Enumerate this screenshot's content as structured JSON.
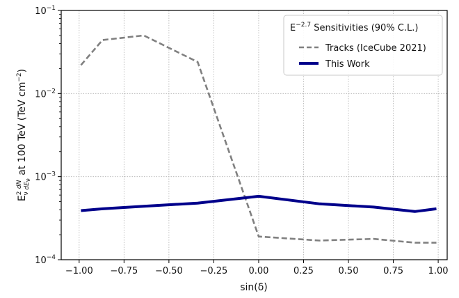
{
  "chart_data": {
    "type": "line",
    "title": "",
    "xlabel": "sin(δ)",
    "ylabel": {
      "e": "E",
      "e_sub": "ν",
      "e_sup": "2",
      "dn_num": "dN",
      "dn_den": "dE",
      "dn_den_sub": "ν",
      "rest": "at 100 TeV (TeV cm",
      "rest_sup": "−2",
      "close": ")"
    },
    "xlim": [
      -1.1,
      1.05
    ],
    "ylim": [
      0.0001,
      0.1
    ],
    "yscale": "log",
    "grid": true,
    "x_ticks": [
      {
        "value": -1.0,
        "label": "−1.00"
      },
      {
        "value": -0.75,
        "label": "−0.75"
      },
      {
        "value": -0.5,
        "label": "−0.50"
      },
      {
        "value": -0.25,
        "label": "−0.25"
      },
      {
        "value": 0.0,
        "label": "0.00"
      },
      {
        "value": 0.25,
        "label": "0.25"
      },
      {
        "value": 0.5,
        "label": "0.50"
      },
      {
        "value": 0.75,
        "label": "0.75"
      },
      {
        "value": 1.0,
        "label": "1.00"
      }
    ],
    "y_ticks": [
      {
        "value": 0.0001,
        "base": "10",
        "exp": "−4"
      },
      {
        "value": 0.001,
        "base": "10",
        "exp": "−3"
      },
      {
        "value": 0.01,
        "base": "10",
        "exp": "−2"
      },
      {
        "value": 0.1,
        "base": "10",
        "exp": "−1"
      }
    ],
    "legend": {
      "placement": "top-right",
      "title_base": "E",
      "title_sup": "−2.7",
      "title_rest": " Sensitivities (90% C.L.)"
    },
    "series": [
      {
        "name": "Tracks (IceCube 2021)",
        "color": "#808080",
        "style": "dashed",
        "points": [
          {
            "x": -0.99,
            "y": 0.022
          },
          {
            "x": -0.87,
            "y": 0.044
          },
          {
            "x": -0.64,
            "y": 0.05
          },
          {
            "x": -0.34,
            "y": 0.024
          },
          {
            "x": 0.0,
            "y": 0.00019
          },
          {
            "x": 0.34,
            "y": 0.00017
          },
          {
            "x": 0.64,
            "y": 0.000178
          },
          {
            "x": 0.87,
            "y": 0.00016
          },
          {
            "x": 0.99,
            "y": 0.00016
          }
        ]
      },
      {
        "name": "This Work",
        "color": "#00008b",
        "style": "solid",
        "points": [
          {
            "x": -0.99,
            "y": 0.00039
          },
          {
            "x": -0.87,
            "y": 0.00041
          },
          {
            "x": -0.64,
            "y": 0.00044
          },
          {
            "x": -0.34,
            "y": 0.00048
          },
          {
            "x": 0.0,
            "y": 0.00058
          },
          {
            "x": 0.34,
            "y": 0.00047
          },
          {
            "x": 0.64,
            "y": 0.00043
          },
          {
            "x": 0.87,
            "y": 0.00038
          },
          {
            "x": 0.99,
            "y": 0.00041
          }
        ]
      }
    ]
  }
}
